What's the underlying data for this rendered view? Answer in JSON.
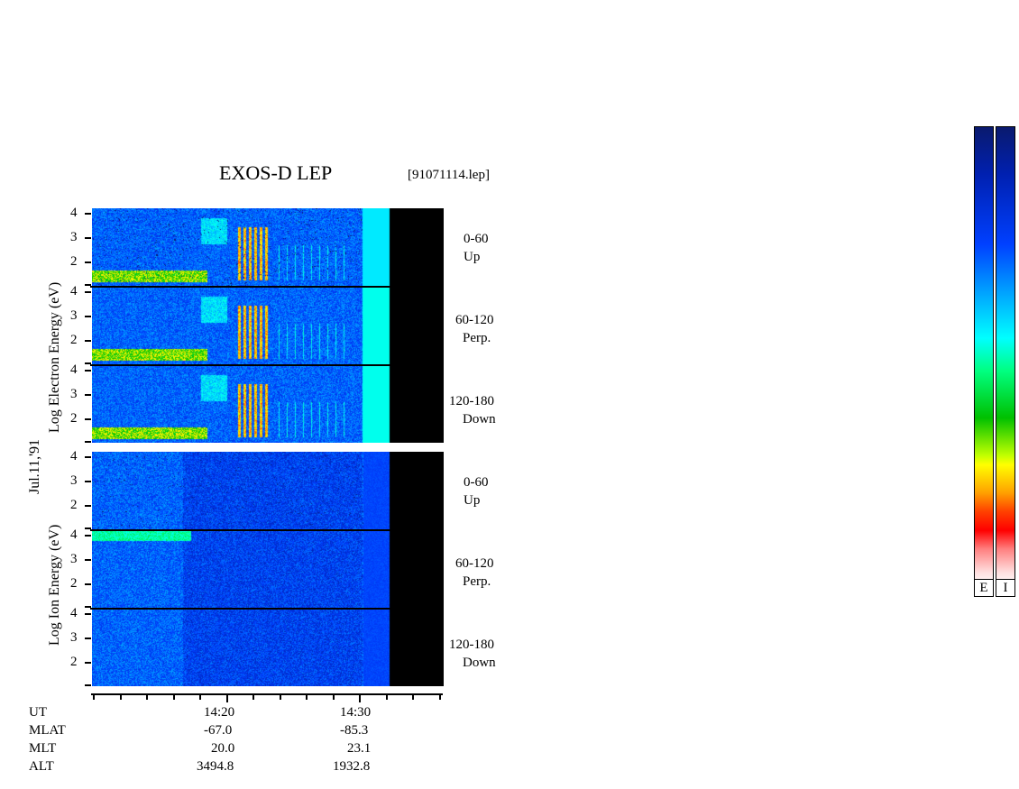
{
  "chart_data": {
    "type": "heatmap",
    "title": "EXOS-D LEP",
    "file_label": "[91071114.lep]",
    "date_label": "Jul.11,'91",
    "electron_ylabel": "Log Electron Energy (eV)",
    "ion_ylabel": "Log Ion Energy (eV)",
    "yticks": [
      "4",
      "3",
      "2"
    ],
    "panels": [
      {
        "species": "electron",
        "angle": "0-60",
        "direction": "Up"
      },
      {
        "species": "electron",
        "angle": "60-120",
        "direction": "Perp."
      },
      {
        "species": "electron",
        "angle": "120-180",
        "direction": "Down"
      },
      {
        "species": "ion",
        "angle": "0-60",
        "direction": "Up"
      },
      {
        "species": "ion",
        "angle": "60-120",
        "direction": "Perp."
      },
      {
        "species": "ion",
        "angle": "120-180",
        "direction": "Down"
      }
    ],
    "xaxis": {
      "row_labels": [
        "UT",
        "MLAT",
        "MLT",
        "ALT"
      ],
      "columns": [
        {
          "UT": "14:20",
          "MLAT": "-67.0",
          "MLT": "20.0",
          "ALT": "3494.8"
        },
        {
          "UT": "14:30",
          "MLAT": "-85.3",
          "MLT": "23.1",
          "ALT": "1932.8"
        }
      ]
    },
    "colorbars": [
      {
        "label": "E"
      },
      {
        "label": "I"
      }
    ],
    "colorscale": [
      "#0a1a6e",
      "#0020b0",
      "#0040ff",
      "#00a0ff",
      "#00ffff",
      "#00ff80",
      "#00c000",
      "#ffff00",
      "#ffa000",
      "#ff0000",
      "#ff8080",
      "#ffffff"
    ]
  }
}
